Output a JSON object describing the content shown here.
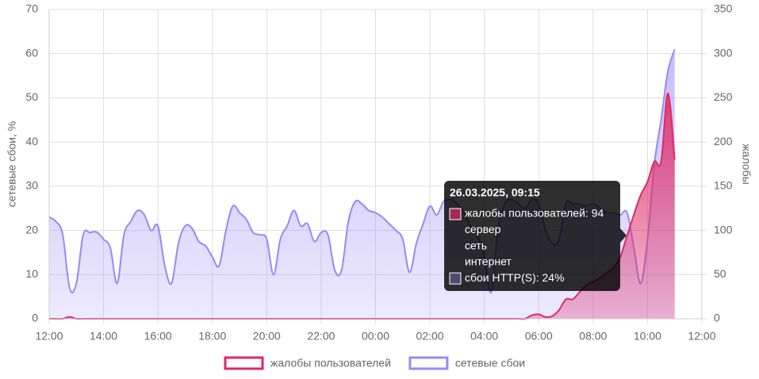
{
  "chart_data": {
    "type": "area",
    "ylabel": "сетевые сбои, %",
    "y2label": "жалобы",
    "xlim": [
      0,
      24
    ],
    "xticks": [
      {
        "value": 0,
        "label": "12:00"
      },
      {
        "value": 2,
        "label": "14:00"
      },
      {
        "value": 4,
        "label": "16:00"
      },
      {
        "value": 6,
        "label": "18:00"
      },
      {
        "value": 8,
        "label": "20:00"
      },
      {
        "value": 10,
        "label": "22:00"
      },
      {
        "value": 12,
        "label": "00:00"
      },
      {
        "value": 14,
        "label": "02:00"
      },
      {
        "value": 16,
        "label": "04:00"
      },
      {
        "value": 18,
        "label": "06:00"
      },
      {
        "value": 20,
        "label": "08:00"
      },
      {
        "value": 22,
        "label": "10:00"
      },
      {
        "value": 24,
        "label": "12:00"
      }
    ],
    "ylim": [
      0,
      70
    ],
    "yticks": [
      0,
      10,
      20,
      30,
      40,
      50,
      60,
      70
    ],
    "y2lim": [
      0,
      350
    ],
    "y2ticks": [
      0,
      50,
      100,
      150,
      200,
      250,
      300,
      350
    ],
    "grid": true,
    "x": [
      0,
      0.25,
      0.5,
      0.75,
      1,
      1.25,
      1.5,
      1.75,
      2,
      2.25,
      2.5,
      2.75,
      3,
      3.25,
      3.5,
      3.75,
      4,
      4.25,
      4.5,
      4.75,
      5,
      5.25,
      5.5,
      5.75,
      6,
      6.25,
      6.5,
      6.75,
      7,
      7.25,
      7.5,
      7.75,
      8,
      8.25,
      8.5,
      8.75,
      9,
      9.25,
      9.5,
      9.75,
      10,
      10.25,
      10.5,
      10.75,
      11,
      11.25,
      11.5,
      11.75,
      12,
      12.25,
      12.5,
      12.75,
      13,
      13.25,
      13.5,
      13.75,
      14,
      14.25,
      14.5,
      14.75,
      15,
      15.25,
      15.5,
      15.75,
      16,
      16.25,
      16.5,
      16.75,
      17,
      17.25,
      17.5,
      17.75,
      18,
      18.25,
      18.5,
      18.75,
      19,
      19.25,
      19.5,
      19.75,
      20,
      20.25,
      20.5,
      20.75,
      21,
      21.25,
      21.5,
      21.75,
      22,
      22.25,
      22.5,
      22.75,
      23
    ],
    "series": [
      {
        "name": "сетевые сбои",
        "color": "#9b87f5",
        "axis": "y",
        "values": [
          23,
          22,
          19,
          7,
          8,
          19,
          19.5,
          19.6,
          18,
          16,
          8,
          19,
          22,
          24.5,
          23.5,
          20,
          21,
          12,
          8,
          17,
          21,
          20.5,
          17.5,
          16.5,
          14,
          12,
          20,
          25.5,
          24,
          22.5,
          19.5,
          19,
          18,
          10,
          18,
          21,
          24.5,
          21,
          21.5,
          17.5,
          19.5,
          19,
          11,
          11,
          22,
          26.5,
          26,
          24.5,
          24,
          23,
          21.5,
          20,
          18,
          10.5,
          17,
          21.5,
          25.5,
          23.5,
          26.5,
          27,
          26,
          24,
          21,
          19,
          14,
          6,
          20,
          26,
          27,
          26,
          25,
          27,
          26,
          20,
          17,
          18,
          26,
          26,
          26,
          25.5,
          26,
          25,
          24,
          24,
          23.5,
          24,
          16,
          8,
          18,
          35,
          45,
          56,
          61
        ]
      },
      {
        "name": "жалобы пользователей",
        "color": "#dd2a66",
        "axis": "y2",
        "values": [
          0,
          0,
          0,
          2,
          0,
          0,
          0,
          0,
          0,
          0,
          0,
          0,
          0,
          0,
          0,
          0,
          0,
          0,
          0,
          0,
          0,
          0,
          0,
          0,
          0,
          0,
          0,
          0,
          0,
          0,
          0,
          0,
          0,
          0,
          0,
          0,
          0,
          0,
          0,
          0,
          0,
          0,
          0,
          0,
          0,
          0,
          0,
          0,
          0,
          0,
          0,
          0,
          0,
          0,
          0,
          0,
          0,
          0,
          0,
          0,
          0,
          0,
          0,
          0,
          0,
          0,
          0,
          0,
          0,
          0,
          0,
          4,
          5,
          2,
          3,
          10,
          22,
          22,
          30,
          38,
          42,
          46,
          52,
          58,
          70,
          94,
          118,
          140,
          155,
          178,
          178,
          255,
          180
        ]
      }
    ],
    "legend": "bottom",
    "tooltip": {
      "title": "26.03.2025, 09:15",
      "items": [
        "жалобы пользователей: 94",
        "сервер",
        "сеть",
        "интернет",
        "сбои HTTP(S): 24%"
      ]
    }
  }
}
